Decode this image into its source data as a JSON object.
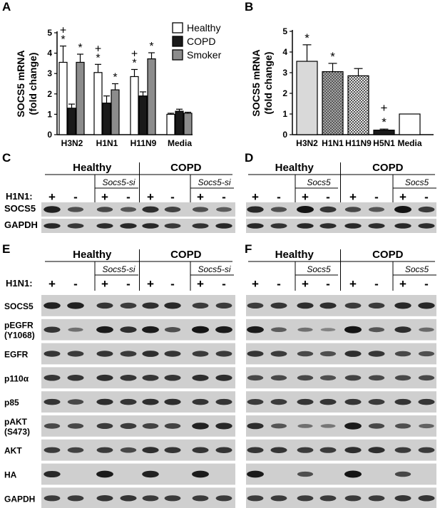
{
  "panel_letters": {
    "A": "A",
    "B": "B",
    "C": "C",
    "D": "D",
    "E": "E",
    "F": "F"
  },
  "chart_data": [
    {
      "panel": "A",
      "type": "bar",
      "ylabel": "SOCS5 mRNA\n(fold change)",
      "xlabel": "",
      "ylim": [
        0,
        5
      ],
      "yticks": [
        "0",
        "1",
        "2",
        "3",
        "4",
        "5"
      ],
      "categories": [
        "H3N2",
        "H1N1",
        "H11N9",
        "Media"
      ],
      "legend_position": "top-right",
      "series": [
        {
          "name": "Healthy",
          "color": "#ffffff",
          "values": [
            3.55,
            3.05,
            2.85,
            1.0
          ],
          "errors": [
            0.8,
            0.4,
            0.35,
            0.05
          ]
        },
        {
          "name": "COPD",
          "color": "#1a1a1a",
          "values": [
            1.3,
            1.55,
            1.9,
            1.15
          ],
          "errors": [
            0.2,
            0.35,
            0.2,
            0.1
          ]
        },
        {
          "name": "Smoker",
          "color": "#8c8c8c",
          "values": [
            3.55,
            2.2,
            3.72,
            1.05
          ],
          "errors": [
            0.4,
            0.3,
            0.3,
            0.05
          ]
        }
      ],
      "annotations": [
        {
          "category": 0,
          "series": 0,
          "text": "+\n*"
        },
        {
          "category": 0,
          "series": 2,
          "text": "*"
        },
        {
          "category": 1,
          "series": 0,
          "text": "+\n*"
        },
        {
          "category": 1,
          "series": 2,
          "text": "*"
        },
        {
          "category": 2,
          "series": 0,
          "text": "+\n*"
        },
        {
          "category": 2,
          "series": 2,
          "text": "*"
        }
      ]
    },
    {
      "panel": "B",
      "type": "bar",
      "ylabel": "SOCS5 mRNA\n(fold change)",
      "xlabel": "",
      "ylim": [
        0,
        5
      ],
      "yticks": [
        "0",
        "1",
        "2",
        "3",
        "4",
        "5"
      ],
      "categories": [
        "H3N2",
        "H1N1",
        "H11N9",
        "H5N1",
        "Media"
      ],
      "values": [
        3.55,
        3.05,
        2.85,
        0.22,
        1.0
      ],
      "errors": [
        0.8,
        0.4,
        0.35,
        0.05,
        0.0
      ],
      "fills": [
        "light",
        "hatch",
        "check",
        "dark",
        "white"
      ],
      "annotations": [
        "*",
        "*",
        "",
        "+\n*",
        ""
      ]
    }
  ],
  "blots": {
    "C": {
      "groups": [
        "Healthy",
        "COPD"
      ],
      "subgroup": "Socs5-si",
      "treatment_label": "H1N1:",
      "signs": [
        "+",
        "-",
        "+",
        "-",
        "+",
        "-",
        "+",
        "-"
      ],
      "rows": [
        "SOCS5",
        "GAPDH"
      ]
    },
    "D": {
      "groups": [
        "Healthy",
        "COPD"
      ],
      "subgroup": "Socs5",
      "signs": [
        "+",
        "-",
        "+",
        "-",
        "+",
        "-",
        "+",
        "-"
      ],
      "rows": [
        "SOCS5",
        "GAPDH"
      ]
    },
    "E": {
      "groups": [
        "Healthy",
        "COPD"
      ],
      "subgroup": "Socs5-si",
      "treatment_label": "H1N1:",
      "signs": [
        "+",
        "-",
        "+",
        "-",
        "+",
        "-",
        "+",
        "-"
      ],
      "rows": [
        "SOCS5",
        "pEGFR\n(Y1068)",
        "EGFR",
        "p110α",
        "p85",
        "pAKT\n(S473)",
        "AKT",
        "HA",
        "GAPDH"
      ]
    },
    "F": {
      "groups": [
        "Healthy",
        "COPD"
      ],
      "subgroup": "Socs5",
      "signs": [
        "+",
        "-",
        "+",
        "-",
        "+",
        "-",
        "+",
        "-"
      ],
      "rows": [
        "SOCS5",
        "pEGFR",
        "EGFR",
        "p110α",
        "p85",
        "pAKT",
        "AKT",
        "HA",
        "GAPDH"
      ]
    }
  }
}
